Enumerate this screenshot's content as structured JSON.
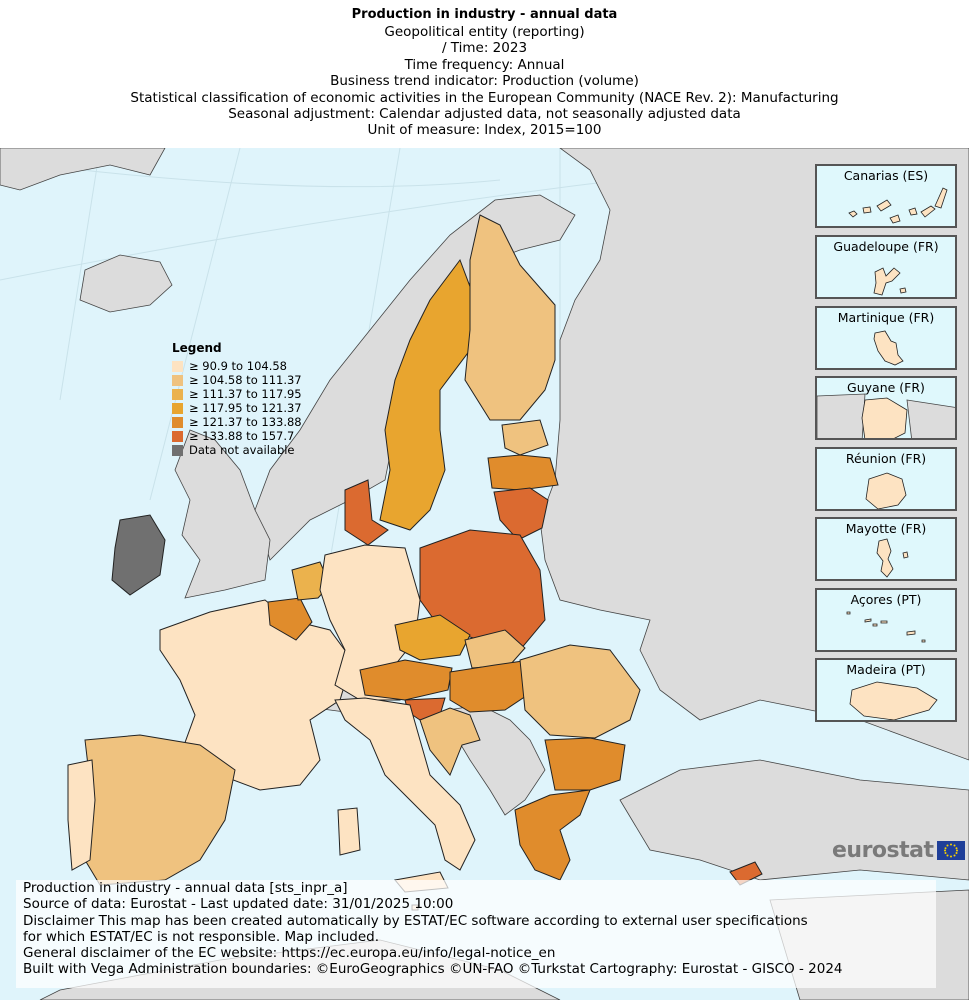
{
  "header": {
    "title": "Production in industry - annual data",
    "lines": [
      "Geopolitical entity (reporting)",
      "/ Time:  2023",
      "Time frequency:  Annual",
      "Business trend indicator:  Production (volume)",
      "Statistical classification of economic activities in the European Community (NACE Rev. 2):  Manufacturing",
      "Seasonal adjustment:  Calendar adjusted data, not seasonally adjusted data",
      "Unit of measure:  Index, 2015=100"
    ]
  },
  "legend": {
    "title": "Legend",
    "items": [
      {
        "label": "≥ 90.9 to 104.58",
        "color": "#fde3c2"
      },
      {
        "label": "≥ 104.58 to 111.37",
        "color": "#efc27f"
      },
      {
        "label": "≥ 111.37 to 117.95",
        "color": "#ebb24d"
      },
      {
        "label": "≥ 117.95 to 121.37",
        "color": "#e8a52f"
      },
      {
        "label": "≥ 121.37 to 133.88",
        "color": "#e08c2c"
      },
      {
        "label": "≥ 133.88 to 157.7",
        "color": "#db6a30"
      },
      {
        "label": "Data not available",
        "color": "#707070"
      }
    ]
  },
  "insets": [
    "Canarias (ES)",
    "Guadeloupe (FR)",
    "Martinique (FR)",
    "Guyane (FR)",
    "Réunion (FR)",
    "Mayotte (FR)",
    "Açores (PT)",
    "Madeira (PT)"
  ],
  "logo": "eurostat",
  "footer": {
    "lines": [
      "Production in industry - annual data [sts_inpr_a]",
      "Source of data: Eurostat - Last updated date: 31/01/2025 10:00",
      "Disclaimer This map has been created automatically by ESTAT/EC software according to external user specifications",
      "for which ESTAT/EC is not responsible. Map included.",
      "General disclaimer of the EC website: https://ec.europa.eu/info/legal-notice_en",
      "Built with Vega Administration boundaries: ©EuroGeographics ©UN-FAO ©Turkstat Cartography: Eurostat - GISCO - 2024"
    ]
  }
}
